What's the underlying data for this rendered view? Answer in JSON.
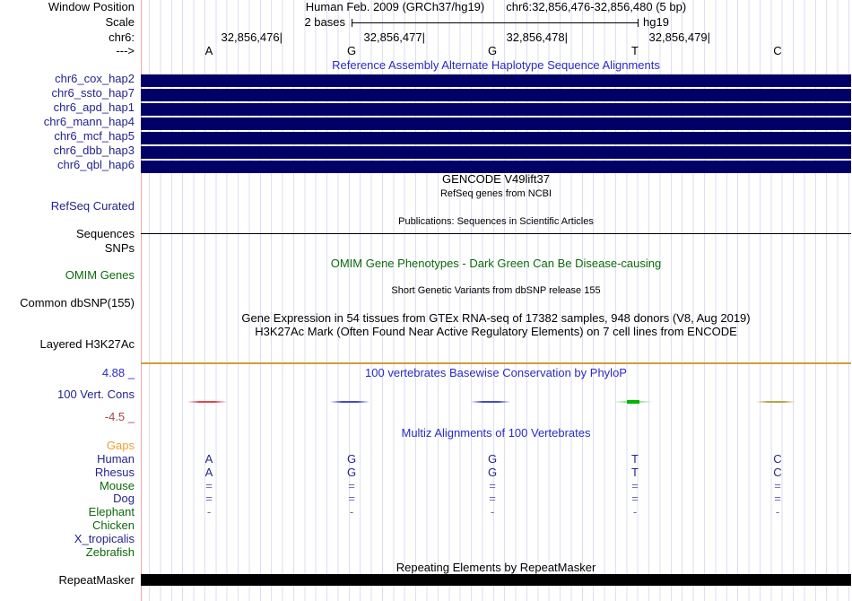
{
  "window": {
    "position_label": "Window Position",
    "assembly_title": "Human Feb. 2009 (GRCh37/hg19)",
    "position_range": "chr6:32,856,476-32,856,480 (5 bp)"
  },
  "scale": {
    "label": "Scale",
    "value": "2 bases",
    "assembly": "hg19"
  },
  "ruler": {
    "chrom_label": "chr6:",
    "strand_arrow": "--->",
    "coordinates": [
      "32,856,476|",
      "32,856,477|",
      "32,856,478|",
      "32,856,479|"
    ],
    "bases": [
      "A",
      "G",
      "G",
      "T",
      "C"
    ]
  },
  "haplotypes": {
    "title": "Reference Assembly Alternate Haplotype Sequence Alignments",
    "bar_color": "#000066",
    "rows": [
      {
        "label": "chr6_cox_hap2"
      },
      {
        "label": "chr6_ssto_hap7"
      },
      {
        "label": "chr6_apd_hap1"
      },
      {
        "label": "chr6_mann_hap4"
      },
      {
        "label": "chr6_mcf_hap5"
      },
      {
        "label": "chr6_dbb_hap3"
      },
      {
        "label": "chr6_qbl_hap6"
      }
    ]
  },
  "genes": {
    "gencode_title": "GENCODE V49lift37",
    "refseq_subtitle": "RefSeq genes from NCBI",
    "refseq_label": "RefSeq Curated",
    "publications_title": "Publications: Sequences in Scientific Articles",
    "sequences_label": "Sequences",
    "snps_label": "SNPs"
  },
  "omim": {
    "label": "OMIM Genes",
    "title": "OMIM Gene Phenotypes - Dark Green Can Be Disease-causing"
  },
  "dbsnp": {
    "label": "Common dbSNP(155)",
    "title": "Short Genetic Variants from dbSNP release 155"
  },
  "gtex": {
    "title": "Gene Expression in 54 tissues from GTEx RNA-seq of 17382 samples, 948 donors (V8, Aug 2019)"
  },
  "h3k27ac": {
    "label": "Layered H3K27Ac",
    "title": "H3K27Ac Mark (Often Found Near Active Regulatory Elements) on 7 cell lines from ENCODE",
    "baseline_color": "#C8A13C"
  },
  "conservation": {
    "label": "100 Vert. Cons",
    "title": "100 vertebrates Basewise Conservation by PhyloP",
    "max_value": "4.88 _",
    "min_value": "-4.5 _",
    "marks": [
      {
        "base": "A",
        "color": "#E04848"
      },
      {
        "base": "G",
        "color": "#4848C8"
      },
      {
        "base": "G",
        "color": "#4848C8"
      },
      {
        "base": "T",
        "color": "#A8E0A8",
        "peak_color": "#00B400"
      },
      {
        "base": "C",
        "color": "#B4A448"
      }
    ]
  },
  "multiz": {
    "title": "Multiz Alignments of 100 Vertebrates",
    "species": [
      {
        "label": "Gaps",
        "color": "#F0A030",
        "values": [
          "",
          "",
          "",
          "",
          ""
        ]
      },
      {
        "label": "Human",
        "color": "#24248F",
        "values": [
          "A",
          "G",
          "G",
          "T",
          "C"
        ]
      },
      {
        "label": "Rhesus",
        "color": "#24248F",
        "values": [
          "A",
          "G",
          "G",
          "T",
          "C"
        ]
      },
      {
        "label": "Mouse",
        "color": "#0B6B0B",
        "values": [
          "=",
          "=",
          "=",
          "=",
          "="
        ]
      },
      {
        "label": "Dog",
        "color": "#24248F",
        "values": [
          "=",
          "=",
          "=",
          "=",
          "="
        ]
      },
      {
        "label": "Elephant",
        "color": "#0B6B0B",
        "values": [
          "-",
          "-",
          "-",
          "-",
          "-"
        ]
      },
      {
        "label": "Chicken",
        "color": "#0B6B0B",
        "values": [
          "",
          "",
          "",
          "",
          ""
        ]
      },
      {
        "label": "X_tropicalis",
        "color": "#24248F",
        "values": [
          "",
          "",
          "",
          "",
          ""
        ]
      },
      {
        "label": "Zebrafish",
        "color": "#0B6B0B",
        "values": [
          "",
          "",
          "",
          "",
          ""
        ]
      }
    ]
  },
  "repeatmasker": {
    "label": "RepeatMasker",
    "title": "Repeating Elements by RepeatMasker",
    "bar_color": "#000000"
  },
  "colors": {
    "title_blue": "#2B2BC4",
    "link_navy": "#24248F",
    "green": "#0B6B0B",
    "glyph_slate": "#6A6AB0",
    "maroon": "#A04848",
    "grid": "#DEDEF2",
    "edge_pink": "#F2A4A4",
    "hap_navy": "#000066",
    "h3k_tan": "#C8A13C"
  }
}
